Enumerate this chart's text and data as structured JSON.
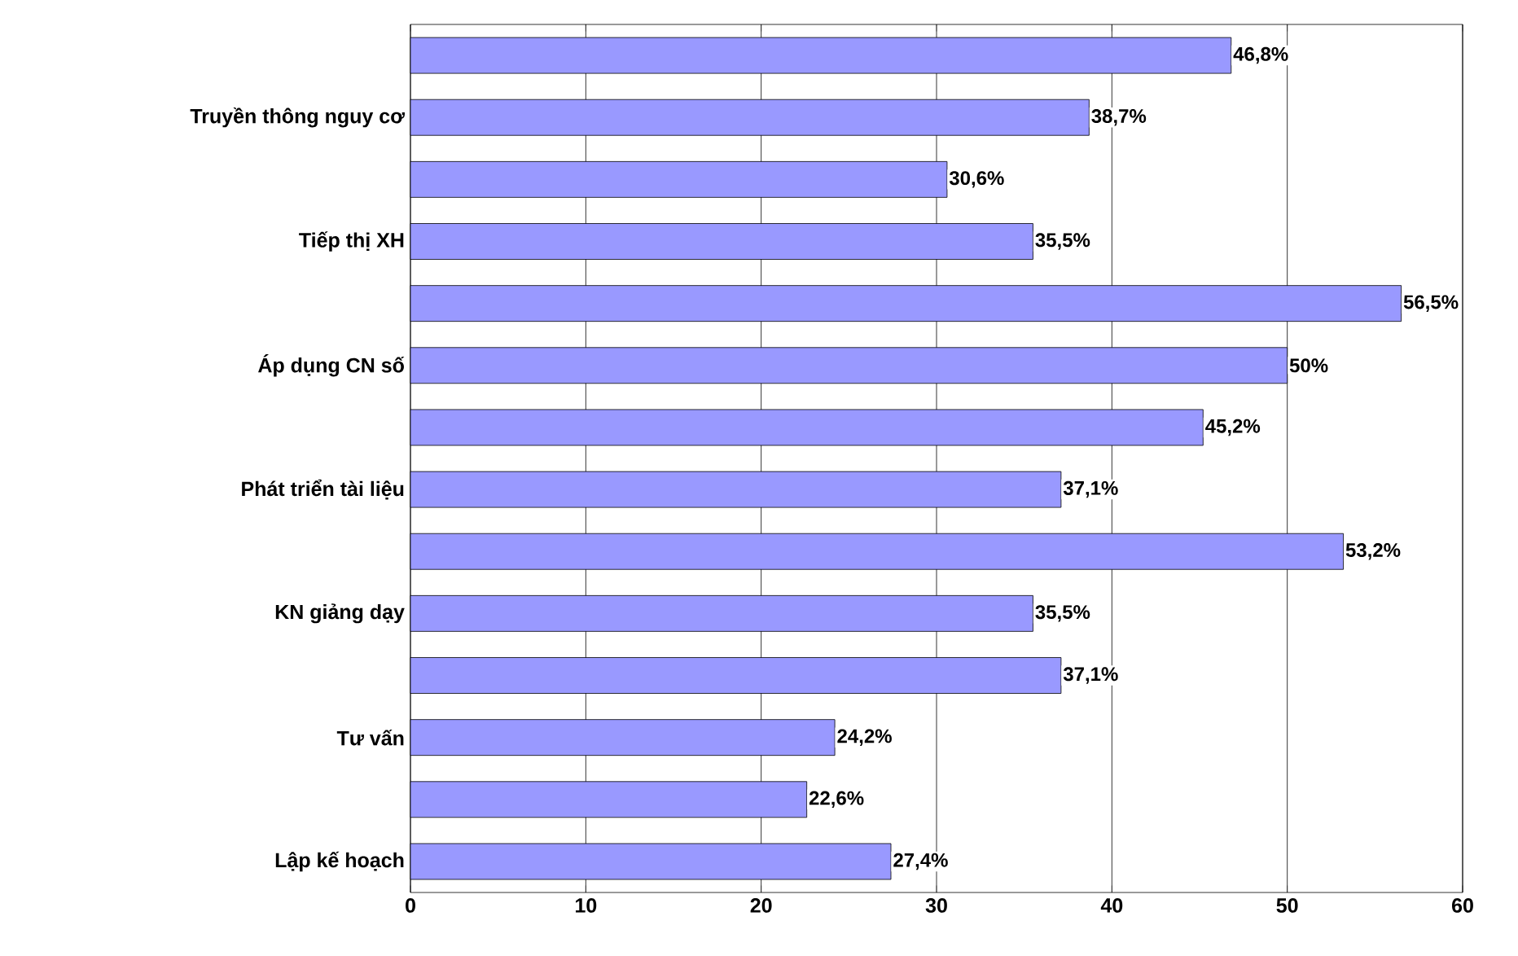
{
  "chart_data": {
    "type": "bar",
    "orientation": "horizontal",
    "categories": [
      null,
      "Truyền thông nguy cơ",
      null,
      "Tiếp thị XH",
      null,
      "Áp dụng CN số",
      null,
      "Phát triển tài liệu",
      null,
      "KN giảng dạy",
      null,
      "Tư vấn",
      null,
      "Lập kế hoạch"
    ],
    "values": [
      46.8,
      38.7,
      30.6,
      35.5,
      56.5,
      50,
      45.2,
      37.1,
      53.2,
      35.5,
      37.1,
      24.2,
      22.6,
      27.4
    ],
    "value_labels": [
      "46,8%",
      "38,7%",
      "30,6%",
      "35,5%",
      "56,5%",
      "50%",
      "45,2%",
      "37,1%",
      "53,2%",
      "35,5%",
      "37,1%",
      "24,2%",
      "22,6%",
      "27,4%"
    ],
    "color": "#9999ff",
    "xlim": [
      0,
      60
    ],
    "xticks": [
      0,
      10,
      20,
      30,
      40,
      50,
      60
    ],
    "grid": "x"
  }
}
